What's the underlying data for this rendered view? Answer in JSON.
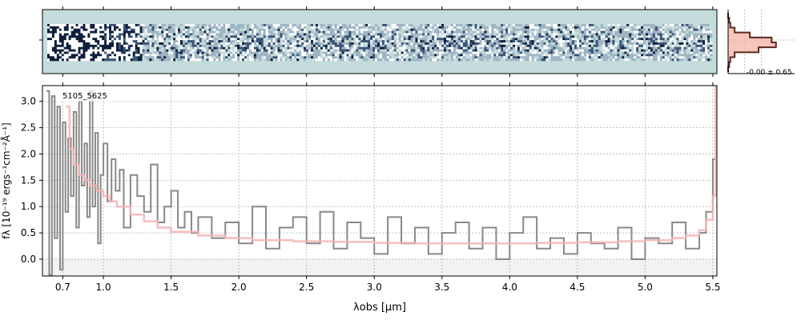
{
  "chart_data": [
    {
      "type": "heatmap",
      "id": "spectrum-2d",
      "description_of_content": "",
      "colormap": [
        "#0d1f3a",
        "#3b5577",
        "#9fb5c4",
        "#c5dcdc",
        "#ffffff"
      ],
      "background_color": "#c5dcdc"
    },
    {
      "type": "histogram",
      "id": "pixel-histogram",
      "annotation": "-0.00 ± 0.65",
      "bins": [
        0,
        1,
        2,
        3,
        4,
        5,
        6,
        7,
        8,
        9,
        10,
        11
      ],
      "counts": [
        0,
        1,
        2,
        6,
        20,
        40,
        44,
        28,
        6,
        2,
        1,
        0
      ],
      "fill_color": "#f5b7a8",
      "line_color": "#5a2a22"
    },
    {
      "type": "line",
      "id": "spectrum-1d",
      "label": "5105_5625",
      "xlabel": "λobs [μm]",
      "ylabel": "fλ [10⁻¹⁹ ergs⁻¹cm⁻²Å⁻¹]",
      "x_ticks": [
        "0.7",
        "1.0",
        "1.5",
        "2.0",
        "2.5",
        "3.0",
        "3.5",
        "4.0",
        "4.5",
        "5.0",
        "5.5"
      ],
      "x_tick_values": [
        0.7,
        1.0,
        1.5,
        2.0,
        2.5,
        3.0,
        3.5,
        4.0,
        4.5,
        5.0,
        5.5
      ],
      "y_ticks": [
        "0.0",
        "0.5",
        "1.0",
        "1.5",
        "2.0",
        "2.5",
        "3.0"
      ],
      "y_tick_values": [
        0.0,
        0.5,
        1.0,
        1.5,
        2.0,
        2.5,
        3.0
      ],
      "xlim": [
        0.55,
        5.53
      ],
      "ylim": [
        -0.32,
        3.3
      ],
      "grid": true,
      "series": [
        {
          "color": "#888888",
          "x": [
            0.58,
            0.6,
            0.62,
            0.64,
            0.66,
            0.68,
            0.7,
            0.72,
            0.74,
            0.76,
            0.78,
            0.8,
            0.82,
            0.84,
            0.86,
            0.88,
            0.9,
            0.92,
            0.94,
            0.96,
            0.98,
            1.0,
            1.03,
            1.06,
            1.09,
            1.12,
            1.15,
            1.2,
            1.25,
            1.3,
            1.35,
            1.4,
            1.45,
            1.5,
            1.55,
            1.6,
            1.65,
            1.7,
            1.8,
            1.9,
            2.0,
            2.1,
            2.2,
            2.3,
            2.4,
            2.5,
            2.6,
            2.7,
            2.8,
            2.9,
            3.0,
            3.1,
            3.2,
            3.3,
            3.4,
            3.5,
            3.6,
            3.7,
            3.8,
            3.9,
            4.0,
            4.1,
            4.2,
            4.3,
            4.4,
            4.5,
            4.6,
            4.7,
            4.8,
            4.9,
            5.0,
            5.1,
            5.2,
            5.3,
            5.4,
            5.45,
            5.5,
            5.52
          ],
          "y": [
            3.2,
            -0.3,
            3.1,
            0.4,
            2.9,
            -0.2,
            2.6,
            0.9,
            2.3,
            1.2,
            2.8,
            0.6,
            3.0,
            1.4,
            2.2,
            0.8,
            3.2,
            1.0,
            2.4,
            0.3,
            1.6,
            2.2,
            1.1,
            1.9,
            1.3,
            1.7,
            0.6,
            1.6,
            1.2,
            0.9,
            1.8,
            0.7,
            1.0,
            1.3,
            0.6,
            0.9,
            0.5,
            0.8,
            0.4,
            0.7,
            0.3,
            1.0,
            0.2,
            0.6,
            0.8,
            0.3,
            0.9,
            0.2,
            0.7,
            0.4,
            0.1,
            0.8,
            0.3,
            0.6,
            0.1,
            0.5,
            0.7,
            0.2,
            0.6,
            0.0,
            0.5,
            0.8,
            0.2,
            0.4,
            0.1,
            0.5,
            0.3,
            0.2,
            0.6,
            0.0,
            0.4,
            0.3,
            0.7,
            0.2,
            0.5,
            0.9,
            1.9,
            1.9
          ]
        },
        {
          "color": "#f5b3b3",
          "x": [
            0.72,
            0.75,
            0.78,
            0.82,
            0.86,
            0.9,
            0.95,
            1.0,
            1.05,
            1.1,
            1.2,
            1.3,
            1.4,
            1.5,
            1.7,
            1.9,
            2.1,
            2.4,
            2.7,
            3.0,
            3.3,
            3.6,
            3.9,
            4.2,
            4.5,
            4.8,
            5.0,
            5.2,
            5.3,
            5.4,
            5.45,
            5.5,
            5.52
          ],
          "y": [
            2.9,
            2.1,
            1.8,
            1.6,
            1.5,
            1.4,
            1.3,
            1.2,
            1.1,
            1.0,
            0.85,
            0.72,
            0.6,
            0.52,
            0.45,
            0.4,
            0.36,
            0.34,
            0.33,
            0.31,
            0.3,
            0.3,
            0.3,
            0.31,
            0.32,
            0.34,
            0.36,
            0.4,
            0.45,
            0.55,
            0.75,
            1.2,
            3.3
          ]
        }
      ]
    }
  ]
}
